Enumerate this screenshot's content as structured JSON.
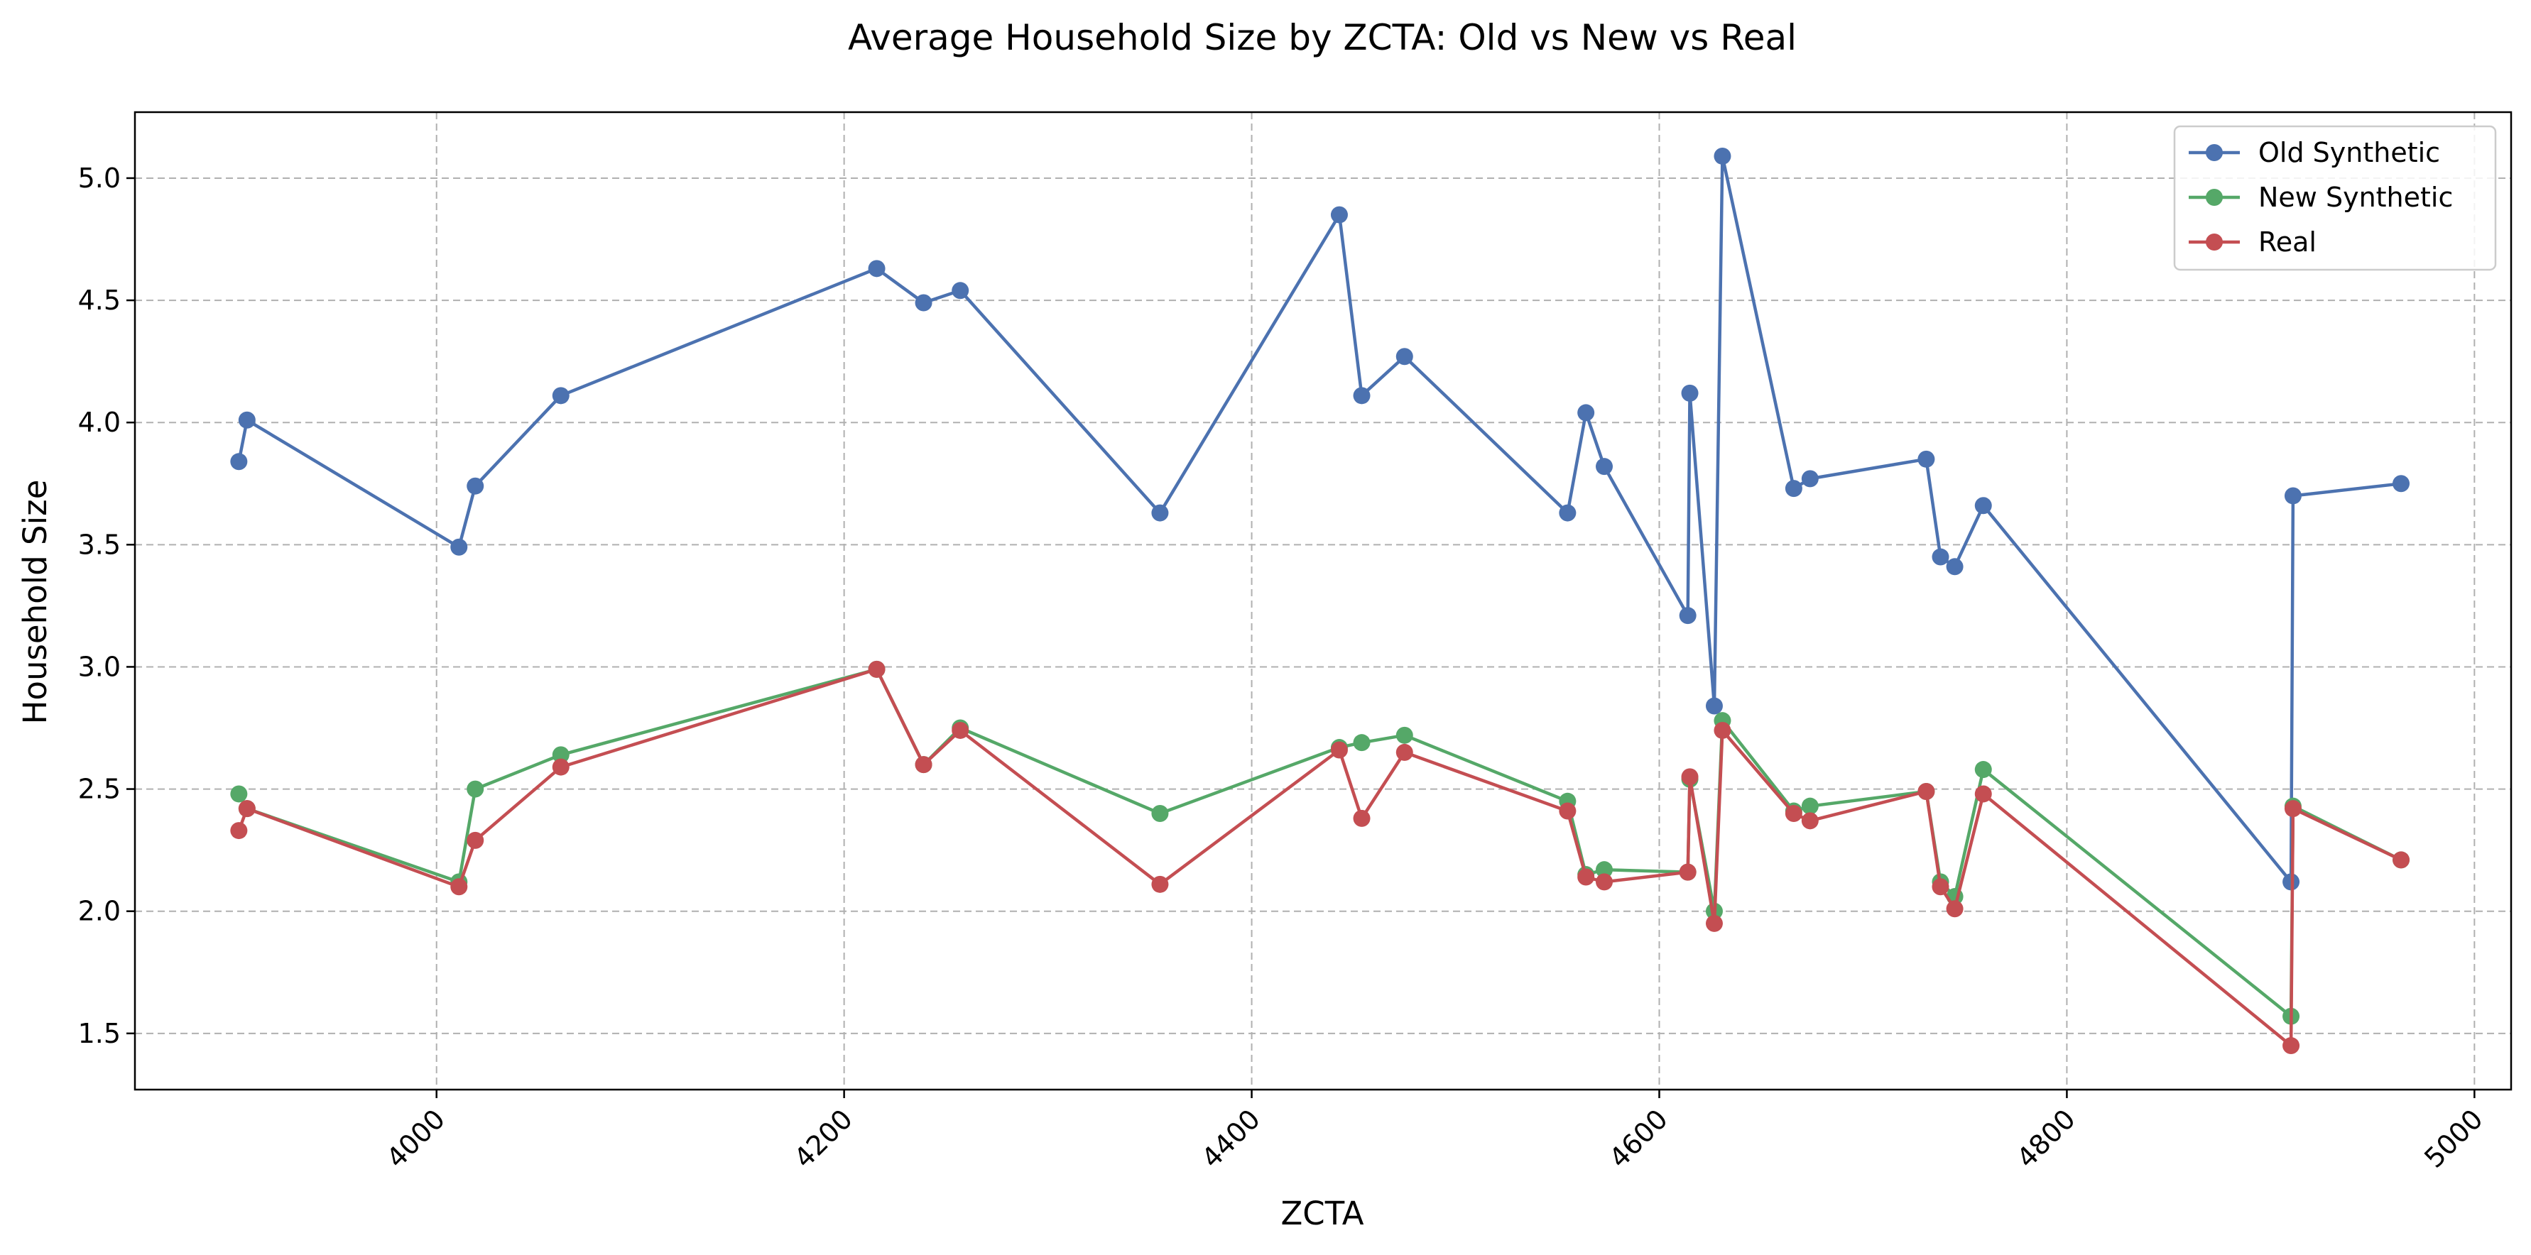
{
  "chart_data": {
    "type": "line",
    "title": "Average Household Size by ZCTA: Old vs New vs Real",
    "xlabel": "ZCTA",
    "ylabel": "Household Size",
    "xlim": [
      3852,
      5018
    ],
    "ylim": [
      1.27,
      5.27
    ],
    "xticks": [
      4000,
      4200,
      4400,
      4600,
      4800,
      5000
    ],
    "yticks": [
      1.5,
      2.0,
      2.5,
      3.0,
      3.5,
      4.0,
      4.5,
      5.0
    ],
    "xtick_labels": [
      "4000",
      "4200",
      "4400",
      "4600",
      "4800",
      "5000"
    ],
    "ytick_labels": [
      "1.5",
      "2.0",
      "2.5",
      "3.0",
      "3.5",
      "4.0",
      "4.5",
      "5.0"
    ],
    "grid": true,
    "legend_position": "top-right",
    "x": [
      3903,
      3907,
      4011,
      4019,
      4061,
      4216,
      4239,
      4257,
      4355,
      4443,
      4454,
      4475,
      4555,
      4564,
      4573,
      4614,
      4615,
      4627,
      4631,
      4666,
      4674,
      4731,
      4738,
      4745,
      4759,
      4910,
      4911,
      4964
    ],
    "series": [
      {
        "name": "Old Synthetic",
        "color": "#4c72b0",
        "values": [
          3.84,
          4.01,
          3.49,
          3.74,
          4.11,
          4.63,
          4.49,
          4.54,
          3.63,
          4.85,
          4.11,
          4.27,
          3.63,
          4.04,
          3.82,
          3.21,
          4.12,
          2.84,
          5.09,
          3.73,
          3.77,
          3.85,
          3.45,
          3.41,
          3.66,
          2.12,
          3.7,
          3.75
        ]
      },
      {
        "name": "New Synthetic",
        "color": "#55a868",
        "values": [
          2.48,
          2.42,
          2.12,
          2.5,
          2.64,
          2.99,
          2.6,
          2.75,
          2.4,
          2.67,
          2.69,
          2.72,
          2.45,
          2.15,
          2.17,
          2.16,
          2.54,
          2.0,
          2.78,
          2.41,
          2.43,
          2.49,
          2.12,
          2.06,
          2.58,
          1.57,
          2.43,
          2.21
        ]
      },
      {
        "name": "Real",
        "color": "#c44e52",
        "values": [
          2.33,
          2.42,
          2.1,
          2.29,
          2.59,
          2.99,
          2.6,
          2.74,
          2.11,
          2.66,
          2.38,
          2.65,
          2.41,
          2.14,
          2.12,
          2.16,
          2.55,
          1.95,
          2.74,
          2.4,
          2.37,
          2.49,
          2.1,
          2.01,
          2.48,
          1.45,
          2.42,
          2.21
        ]
      }
    ]
  }
}
